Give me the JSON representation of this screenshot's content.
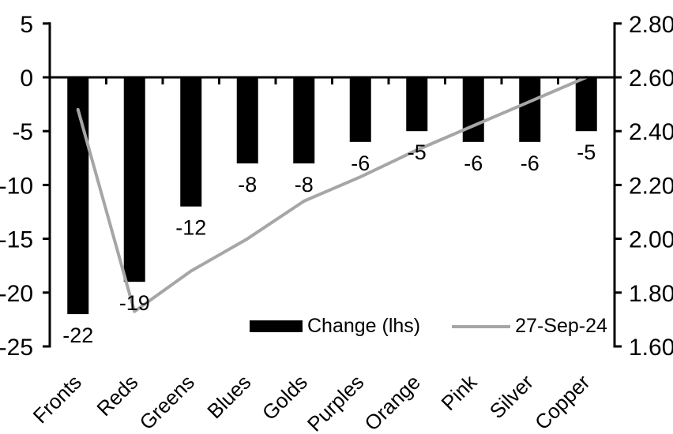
{
  "chart_data": {
    "type": "bar",
    "subtype": "bar-line-combo",
    "title": "",
    "xlabel": "",
    "ylabel": "",
    "grid": false,
    "categories": [
      "Fronts",
      "Reds",
      "Greens",
      "Blues",
      "Golds",
      "Purples",
      "Orange",
      "Pink",
      "Silver",
      "Copper"
    ],
    "series": [
      {
        "name": "Change (lhs)",
        "type": "bar",
        "axis": "left",
        "color": "#000000",
        "values": [
          -22,
          -19,
          -12,
          -8,
          -8,
          -6,
          -5,
          -6,
          -6,
          -5
        ],
        "data_labels": [
          "-22",
          "-19",
          "-12",
          "-8",
          "-8",
          "-6",
          "-5",
          "-6",
          "-6",
          "-5"
        ]
      },
      {
        "name": "27-Sep-24",
        "type": "line",
        "axis": "right",
        "color": "#a6a6a6",
        "values": [
          2.48,
          1.73,
          1.88,
          2.0,
          2.14,
          2.23,
          2.33,
          2.42,
          2.51,
          2.6
        ]
      }
    ],
    "left_axis": {
      "min": -25,
      "max": 5,
      "step": 5,
      "tick_labels": [
        "5",
        "0",
        "-5",
        "-10",
        "-15",
        "-20",
        "-25"
      ]
    },
    "right_axis": {
      "min": 1.6,
      "max": 2.8,
      "step": 0.2,
      "tick_labels": [
        "2.80",
        "2.60",
        "2.40",
        "2.20",
        "2.00",
        "1.80",
        "1.60"
      ]
    },
    "legend": {
      "position": "inside-bottom-center",
      "items": [
        {
          "label": "Change (lhs)",
          "swatch": "bar"
        },
        {
          "label": "27-Sep-24",
          "swatch": "line"
        }
      ]
    }
  },
  "colors": {
    "bar": "#000000",
    "line": "#a6a6a6",
    "axis": "#000000",
    "text": "#000000",
    "background": "#ffffff"
  }
}
